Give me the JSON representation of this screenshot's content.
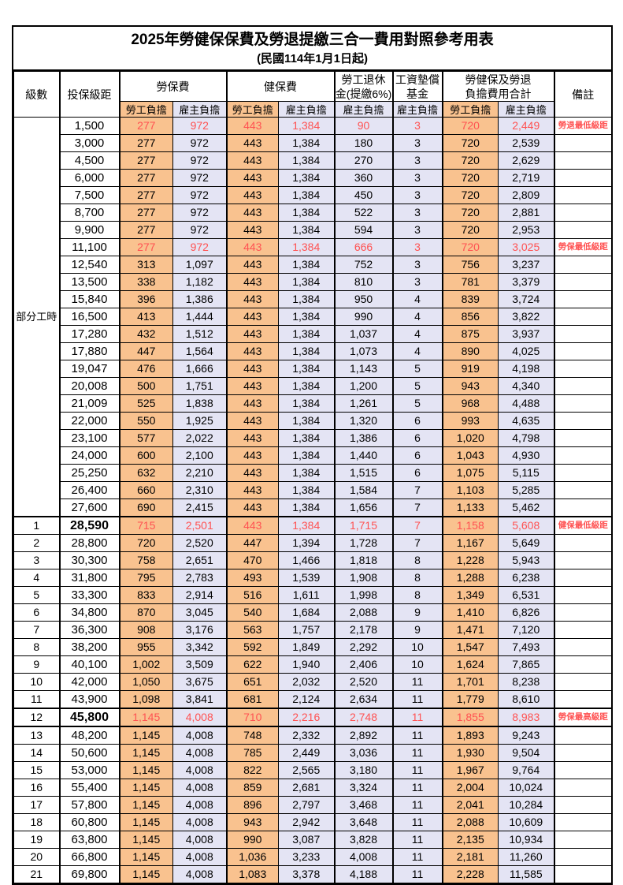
{
  "title": "2025年勞健保保費及勞退提繳三合一費用對照參考用表",
  "subtitle": "(民國114年1月1日起)",
  "header": {
    "level": "級數",
    "bracket": "投保級距",
    "labor_ins": "勞保費",
    "health_ins": "健保費",
    "pension_line1": "勞工退休",
    "pension_line2": "金(提繳6%)",
    "wage_fund_line1": "工資墊償",
    "wage_fund_line2": "基金",
    "total_line1": "勞健保及勞退",
    "total_line2": "負擔費用合計",
    "remark": "備註",
    "employee": "勞工負擔",
    "employer": "雇主負擔"
  },
  "part_time_label": "部分工時",
  "part_time_rowspan": 23,
  "colors": {
    "employee_bg": "#F9C28F",
    "employer_bg": "#E4E4F4",
    "highlight_text": "#FF5252",
    "remark_text": "#FF3B3B"
  },
  "rows": [
    {
      "level": "",
      "bracket": "1,500",
      "v": [
        "277",
        "972",
        "443",
        "1,384",
        "90",
        "3",
        "720",
        "2,449"
      ],
      "remark": "勞退最低級距",
      "red": true
    },
    {
      "level": "",
      "bracket": "3,000",
      "v": [
        "277",
        "972",
        "443",
        "1,384",
        "180",
        "3",
        "720",
        "2,539"
      ],
      "remark": ""
    },
    {
      "level": "",
      "bracket": "4,500",
      "v": [
        "277",
        "972",
        "443",
        "1,384",
        "270",
        "3",
        "720",
        "2,629"
      ],
      "remark": ""
    },
    {
      "level": "",
      "bracket": "6,000",
      "v": [
        "277",
        "972",
        "443",
        "1,384",
        "360",
        "3",
        "720",
        "2,719"
      ],
      "remark": ""
    },
    {
      "level": "",
      "bracket": "7,500",
      "v": [
        "277",
        "972",
        "443",
        "1,384",
        "450",
        "3",
        "720",
        "2,809"
      ],
      "remark": ""
    },
    {
      "level": "",
      "bracket": "8,700",
      "v": [
        "277",
        "972",
        "443",
        "1,384",
        "522",
        "3",
        "720",
        "2,881"
      ],
      "remark": ""
    },
    {
      "level": "",
      "bracket": "9,900",
      "v": [
        "277",
        "972",
        "443",
        "1,384",
        "594",
        "3",
        "720",
        "2,953"
      ],
      "remark": ""
    },
    {
      "level": "",
      "bracket": "11,100",
      "v": [
        "277",
        "972",
        "443",
        "1,384",
        "666",
        "3",
        "720",
        "3,025"
      ],
      "remark": "勞保最低級距",
      "red": true
    },
    {
      "level": "",
      "bracket": "12,540",
      "v": [
        "313",
        "1,097",
        "443",
        "1,384",
        "752",
        "3",
        "756",
        "3,237"
      ],
      "remark": ""
    },
    {
      "level": "",
      "bracket": "13,500",
      "v": [
        "338",
        "1,182",
        "443",
        "1,384",
        "810",
        "3",
        "781",
        "3,379"
      ],
      "remark": ""
    },
    {
      "level": "",
      "bracket": "15,840",
      "v": [
        "396",
        "1,386",
        "443",
        "1,384",
        "950",
        "4",
        "839",
        "3,724"
      ],
      "remark": ""
    },
    {
      "level": "",
      "bracket": "16,500",
      "v": [
        "413",
        "1,444",
        "443",
        "1,384",
        "990",
        "4",
        "856",
        "3,822"
      ],
      "remark": ""
    },
    {
      "level": "",
      "bracket": "17,280",
      "v": [
        "432",
        "1,512",
        "443",
        "1,384",
        "1,037",
        "4",
        "875",
        "3,937"
      ],
      "remark": ""
    },
    {
      "level": "",
      "bracket": "17,880",
      "v": [
        "447",
        "1,564",
        "443",
        "1,384",
        "1,073",
        "4",
        "890",
        "4,025"
      ],
      "remark": ""
    },
    {
      "level": "",
      "bracket": "19,047",
      "v": [
        "476",
        "1,666",
        "443",
        "1,384",
        "1,143",
        "5",
        "919",
        "4,198"
      ],
      "remark": ""
    },
    {
      "level": "",
      "bracket": "20,008",
      "v": [
        "500",
        "1,751",
        "443",
        "1,384",
        "1,200",
        "5",
        "943",
        "4,340"
      ],
      "remark": ""
    },
    {
      "level": "",
      "bracket": "21,009",
      "v": [
        "525",
        "1,838",
        "443",
        "1,384",
        "1,261",
        "5",
        "968",
        "4,488"
      ],
      "remark": ""
    },
    {
      "level": "",
      "bracket": "22,000",
      "v": [
        "550",
        "1,925",
        "443",
        "1,384",
        "1,320",
        "6",
        "993",
        "4,635"
      ],
      "remark": ""
    },
    {
      "level": "",
      "bracket": "23,100",
      "v": [
        "577",
        "2,022",
        "443",
        "1,384",
        "1,386",
        "6",
        "1,020",
        "4,798"
      ],
      "remark": ""
    },
    {
      "level": "",
      "bracket": "24,000",
      "v": [
        "600",
        "2,100",
        "443",
        "1,384",
        "1,440",
        "6",
        "1,043",
        "4,930"
      ],
      "remark": ""
    },
    {
      "level": "",
      "bracket": "25,250",
      "v": [
        "632",
        "2,210",
        "443",
        "1,384",
        "1,515",
        "6",
        "1,075",
        "5,115"
      ],
      "remark": ""
    },
    {
      "level": "",
      "bracket": "26,400",
      "v": [
        "660",
        "2,310",
        "443",
        "1,384",
        "1,584",
        "7",
        "1,103",
        "5,285"
      ],
      "remark": ""
    },
    {
      "level": "",
      "bracket": "27,600",
      "v": [
        "690",
        "2,415",
        "443",
        "1,384",
        "1,656",
        "7",
        "1,133",
        "5,462"
      ],
      "remark": ""
    },
    {
      "level": "1",
      "bracket": "28,590",
      "v": [
        "715",
        "2,501",
        "443",
        "1,384",
        "1,715",
        "7",
        "1,158",
        "5,608"
      ],
      "remark": "健保最低級距",
      "red": true,
      "bold": true,
      "thick_top": true
    },
    {
      "level": "2",
      "bracket": "28,800",
      "v": [
        "720",
        "2,520",
        "447",
        "1,394",
        "1,728",
        "7",
        "1,167",
        "5,649"
      ],
      "remark": ""
    },
    {
      "level": "3",
      "bracket": "30,300",
      "v": [
        "758",
        "2,651",
        "470",
        "1,466",
        "1,818",
        "8",
        "1,228",
        "5,943"
      ],
      "remark": ""
    },
    {
      "level": "4",
      "bracket": "31,800",
      "v": [
        "795",
        "2,783",
        "493",
        "1,539",
        "1,908",
        "8",
        "1,288",
        "6,238"
      ],
      "remark": ""
    },
    {
      "level": "5",
      "bracket": "33,300",
      "v": [
        "833",
        "2,914",
        "516",
        "1,611",
        "1,998",
        "8",
        "1,349",
        "6,531"
      ],
      "remark": ""
    },
    {
      "level": "6",
      "bracket": "34,800",
      "v": [
        "870",
        "3,045",
        "540",
        "1,684",
        "2,088",
        "9",
        "1,410",
        "6,826"
      ],
      "remark": ""
    },
    {
      "level": "7",
      "bracket": "36,300",
      "v": [
        "908",
        "3,176",
        "563",
        "1,757",
        "2,178",
        "9",
        "1,471",
        "7,120"
      ],
      "remark": ""
    },
    {
      "level": "8",
      "bracket": "38,200",
      "v": [
        "955",
        "3,342",
        "592",
        "1,849",
        "2,292",
        "10",
        "1,547",
        "7,493"
      ],
      "remark": ""
    },
    {
      "level": "9",
      "bracket": "40,100",
      "v": [
        "1,002",
        "3,509",
        "622",
        "1,940",
        "2,406",
        "10",
        "1,624",
        "7,865"
      ],
      "remark": ""
    },
    {
      "level": "10",
      "bracket": "42,000",
      "v": [
        "1,050",
        "3,675",
        "651",
        "2,032",
        "2,520",
        "11",
        "1,701",
        "8,238"
      ],
      "remark": ""
    },
    {
      "level": "11",
      "bracket": "43,900",
      "v": [
        "1,098",
        "3,841",
        "681",
        "2,124",
        "2,634",
        "11",
        "1,779",
        "8,610"
      ],
      "remark": ""
    },
    {
      "level": "12",
      "bracket": "45,800",
      "v": [
        "1,145",
        "4,008",
        "710",
        "2,216",
        "2,748",
        "11",
        "1,855",
        "8,983"
      ],
      "remark": "勞保最高級距",
      "red": true,
      "bold": true,
      "thick_top": true,
      "thick_bottom": true
    },
    {
      "level": "13",
      "bracket": "48,200",
      "v": [
        "1,145",
        "4,008",
        "748",
        "2,332",
        "2,892",
        "11",
        "1,893",
        "9,243"
      ],
      "remark": ""
    },
    {
      "level": "14",
      "bracket": "50,600",
      "v": [
        "1,145",
        "4,008",
        "785",
        "2,449",
        "3,036",
        "11",
        "1,930",
        "9,504"
      ],
      "remark": ""
    },
    {
      "level": "15",
      "bracket": "53,000",
      "v": [
        "1,145",
        "4,008",
        "822",
        "2,565",
        "3,180",
        "11",
        "1,967",
        "9,764"
      ],
      "remark": ""
    },
    {
      "level": "16",
      "bracket": "55,400",
      "v": [
        "1,145",
        "4,008",
        "859",
        "2,681",
        "3,324",
        "11",
        "2,004",
        "10,024"
      ],
      "remark": ""
    },
    {
      "level": "17",
      "bracket": "57,800",
      "v": [
        "1,145",
        "4,008",
        "896",
        "2,797",
        "3,468",
        "11",
        "2,041",
        "10,284"
      ],
      "remark": ""
    },
    {
      "level": "18",
      "bracket": "60,800",
      "v": [
        "1,145",
        "4,008",
        "943",
        "2,942",
        "3,648",
        "11",
        "2,088",
        "10,609"
      ],
      "remark": ""
    },
    {
      "level": "19",
      "bracket": "63,800",
      "v": [
        "1,145",
        "4,008",
        "990",
        "3,087",
        "3,828",
        "11",
        "2,135",
        "10,934"
      ],
      "remark": ""
    },
    {
      "level": "20",
      "bracket": "66,800",
      "v": [
        "1,145",
        "4,008",
        "1,036",
        "3,233",
        "4,008",
        "11",
        "2,181",
        "11,260"
      ],
      "remark": ""
    },
    {
      "level": "21",
      "bracket": "69,800",
      "v": [
        "1,145",
        "4,008",
        "1,083",
        "3,378",
        "4,188",
        "11",
        "2,228",
        "11,585"
      ],
      "remark": ""
    }
  ]
}
